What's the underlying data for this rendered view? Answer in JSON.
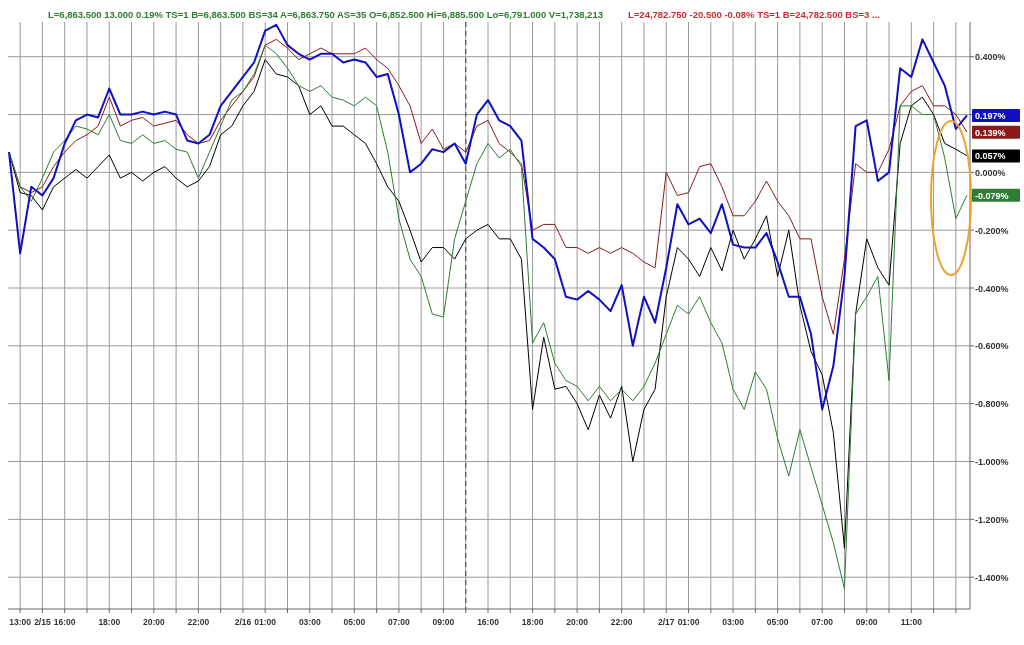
{
  "chart_data": {
    "type": "line",
    "categories": [
      null,
      "13:00",
      null,
      "2/15",
      null,
      "16:00",
      null,
      null,
      null,
      "18:00",
      null,
      null,
      null,
      "20:00",
      null,
      null,
      null,
      "22:00",
      null,
      null,
      null,
      "2/16",
      null,
      "01:00",
      null,
      null,
      null,
      "03:00",
      null,
      null,
      null,
      "05:00",
      null,
      null,
      null,
      "07:00",
      null,
      null,
      null,
      "09:00",
      null,
      null,
      null,
      "16:00",
      null,
      null,
      null,
      "18:00",
      null,
      null,
      null,
      "20:00",
      null,
      null,
      null,
      "22:00",
      null,
      null,
      null,
      "2/17",
      null,
      "01:00",
      null,
      null,
      null,
      "03:00",
      null,
      null,
      null,
      "05:00",
      null,
      null,
      null,
      "07:00",
      null,
      null,
      null,
      "09:00",
      null,
      null,
      null,
      "11:00",
      null,
      null,
      null,
      null,
      null
    ],
    "series": [
      {
        "color": "#8b1a1a",
        "values": [
          0.07,
          -0.05,
          -0.07,
          -0.05,
          0.02,
          0.07,
          0.11,
          0.13,
          0.16,
          0.26,
          0.16,
          0.18,
          0.19,
          0.16,
          0.17,
          0.18,
          0.13,
          0.1,
          0.11,
          0.18,
          0.23,
          0.28,
          0.33,
          0.44,
          0.46,
          0.43,
          0.39,
          0.41,
          0.43,
          0.41,
          0.41,
          0.41,
          0.43,
          0.39,
          0.36,
          0.3,
          0.23,
          0.1,
          0.15,
          0.08,
          0.1,
          0.07,
          0.16,
          0.18,
          0.1,
          0.07,
          0.03,
          -0.2,
          -0.18,
          -0.18,
          -0.26,
          -0.26,
          -0.28,
          -0.26,
          -0.28,
          -0.26,
          -0.28,
          -0.31,
          -0.33,
          0,
          -0.08,
          -0.07,
          0.02,
          0.03,
          -0.05,
          -0.15,
          -0.15,
          -0.1,
          -0.03,
          -0.1,
          -0.15,
          -0.23,
          -0.23,
          -0.43,
          -0.56,
          -0.3,
          0.03,
          0,
          0,
          0.08,
          0.23,
          0.28,
          0.3,
          0.23,
          0.23,
          0.2,
          0.139
        ]
      },
      {
        "color": "#000000",
        "values": [
          0.07,
          -0.07,
          -0.08,
          -0.13,
          -0.05,
          -0.02,
          0.01,
          -0.02,
          0.02,
          0.06,
          -0.02,
          0,
          -0.03,
          0,
          0.02,
          -0.02,
          -0.05,
          -0.03,
          0.02,
          0.13,
          0.16,
          0.23,
          0.28,
          0.39,
          0.34,
          0.33,
          0.3,
          0.2,
          0.23,
          0.16,
          0.16,
          0.13,
          0.1,
          0.03,
          -0.05,
          -0.1,
          -0.2,
          -0.31,
          -0.26,
          -0.26,
          -0.3,
          -0.23,
          -0.2,
          -0.18,
          -0.23,
          -0.23,
          -0.3,
          -0.82,
          -0.57,
          -0.75,
          -0.74,
          -0.8,
          -0.89,
          -0.77,
          -0.85,
          -0.74,
          -1.0,
          -0.82,
          -0.75,
          -0.43,
          -0.26,
          -0.3,
          -0.36,
          -0.26,
          -0.34,
          -0.2,
          -0.3,
          -0.23,
          -0.15,
          -0.36,
          -0.2,
          -0.46,
          -0.62,
          -0.7,
          -0.9,
          -1.3,
          -0.49,
          -0.23,
          -0.33,
          -0.39,
          0.1,
          0.23,
          0.26,
          0.2,
          0.1,
          0.08,
          0.057
        ]
      },
      {
        "color": "#2e7d32",
        "values": [
          0.07,
          -0.05,
          -0.1,
          -0.02,
          0.07,
          0.11,
          0.16,
          0.15,
          0.13,
          0.2,
          0.11,
          0.1,
          0.13,
          0.1,
          0.11,
          0.08,
          0.07,
          -0.02,
          0.07,
          0.16,
          0.25,
          0.28,
          0.34,
          0.44,
          0.41,
          0.36,
          0.3,
          0.28,
          0.3,
          0.26,
          0.25,
          0.23,
          0.26,
          0.23,
          0.07,
          -0.16,
          -0.3,
          -0.36,
          -0.49,
          -0.5,
          -0.23,
          -0.1,
          0.03,
          0.1,
          0.05,
          0.08,
          0.02,
          -0.59,
          -0.52,
          -0.66,
          -0.72,
          -0.74,
          -0.79,
          -0.74,
          -0.79,
          -0.75,
          -0.79,
          -0.74,
          -0.66,
          -0.56,
          -0.46,
          -0.49,
          -0.43,
          -0.52,
          -0.59,
          -0.75,
          -0.82,
          -0.69,
          -0.75,
          -0.92,
          -1.05,
          -0.89,
          -1.02,
          -1.15,
          -1.28,
          -1.44,
          -0.49,
          -0.43,
          -0.36,
          -0.72,
          0.23,
          0.23,
          0.2,
          0.2,
          0.05,
          -0.16,
          -0.079
        ]
      },
      {
        "color": "#1010c0",
        "values": [
          0.07,
          -0.28,
          -0.05,
          -0.08,
          -0.02,
          0.1,
          0.18,
          0.2,
          0.19,
          0.29,
          0.2,
          0.2,
          0.21,
          0.2,
          0.21,
          0.2,
          0.11,
          0.1,
          0.13,
          0.23,
          0.28,
          0.33,
          0.38,
          0.49,
          0.51,
          0.44,
          0.41,
          0.39,
          0.41,
          0.41,
          0.38,
          0.39,
          0.38,
          0.33,
          0.34,
          0.2,
          0,
          0.03,
          0.08,
          0.07,
          0.1,
          0.03,
          0.2,
          0.25,
          0.18,
          0.16,
          0.11,
          -0.23,
          -0.26,
          -0.3,
          -0.43,
          -0.44,
          -0.41,
          -0.44,
          -0.48,
          -0.39,
          -0.6,
          -0.43,
          -0.52,
          -0.33,
          -0.11,
          -0.18,
          -0.16,
          -0.21,
          -0.11,
          -0.25,
          -0.26,
          -0.26,
          -0.21,
          -0.31,
          -0.43,
          -0.43,
          -0.56,
          -0.82,
          -0.67,
          -0.36,
          0.16,
          0.18,
          -0.03,
          0,
          0.36,
          0.33,
          0.46,
          0.38,
          0.3,
          0.15,
          0.197
        ]
      }
    ],
    "ylim": [
      -1.51,
      0.52
    ],
    "yticks": [
      {
        "value": 0.4,
        "label": "0.400%"
      },
      {
        "value": 0.2,
        "label": null
      },
      {
        "value": 0,
        "label": "0.000%"
      },
      {
        "value": -0.2,
        "label": "-0.200%"
      },
      {
        "value": -0.4,
        "label": "-0.400%"
      },
      {
        "value": -0.6,
        "label": "-0.600%"
      },
      {
        "value": -0.8,
        "label": "-0.800%"
      },
      {
        "value": -1,
        "label": "-1.000%"
      },
      {
        "value": -1.2,
        "label": "-1.200%"
      },
      {
        "value": -1.4,
        "label": "-1.400%"
      }
    ],
    "grid": true,
    "annotations": [
      "0.139%",
      "0.057%",
      "-0.079%",
      "0.197%",
      "L=6,863.500 13.000 0.19% TS=1 B=6,863.500 BS=34 A=6,863.750 AS=35 O=6,852.500 Hi=6,885.500 Lo=6,791.000 V=1,738,213",
      "L=24,782.750 -20.500 -0.08% TS=1 B=24,782.500 BS=3 ..."
    ]
  }
}
